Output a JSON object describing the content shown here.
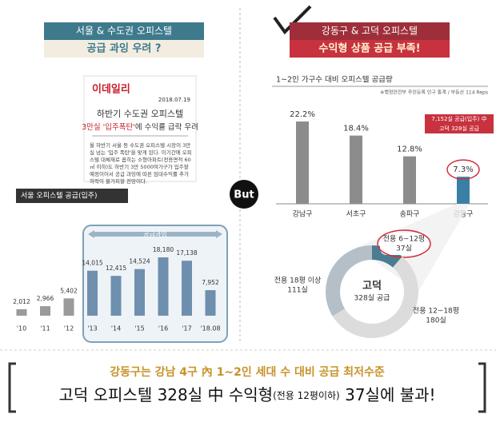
{
  "left_header": {
    "title": "서울 & 수도권 오피스텔",
    "subtitle": "공급 과잉 우려 ?"
  },
  "right_header": {
    "title": "강동구 & 고덕 오피스텔",
    "subtitle": "수익형 상품 공급 부족!"
  },
  "news": {
    "source": "이데일리",
    "date": "2018.07.19",
    "headline": "하반기 수도권 오피스텔",
    "subheadline_highlight": "3만실 '입주폭탄'",
    "subheadline_rest": "에 수익률 급락 우려",
    "body": "올 하반기 서울 등 수도권 오피스텔 시장이 3만실 넘는 '입주 폭탄'을 맞게 된다. 이기간에 오피스텔 대체재로 꼽히는 소형아파트(전용면적 60㎡ 이하)도 하반기 3만 5000여가구가 입주할 예정이어서 공급 과잉에 따른 임대수익률 추가 하락이 불가피할 전망이다."
  },
  "divider_label": "But",
  "chart_data": [
    {
      "type": "bar",
      "title": "서울 오피스텔 공급(입주)",
      "categories": [
        "'10",
        "'11",
        "'12",
        "'13",
        "'14",
        "'15",
        "'16",
        "'17",
        "'18.08"
      ],
      "values": [
        2012,
        2966,
        5402,
        14015,
        12415,
        14524,
        18180,
        17138,
        7952
      ],
      "value_labels": [
        "2,012",
        "2,966",
        "5,402",
        "14,015",
        "12,415",
        "14,524",
        "18,180",
        "17,138",
        "7,952"
      ],
      "colors": [
        "#9a9a9a",
        "#9a9a9a",
        "#9a9a9a",
        "#6f8fae",
        "#6f8fae",
        "#6f8fae",
        "#6f8fae",
        "#6f8fae",
        "#6f8fae"
      ],
      "annotation": "공급과잉"
    },
    {
      "type": "bar",
      "title": "1~2인 가구수 대비 오피스텔 공급량",
      "source": "※행정안전부 주민등록 인구 통계 / 부동산 114 Reps",
      "categories": [
        "강남구",
        "서초구",
        "송파구",
        "강동구"
      ],
      "values": [
        22.2,
        18.4,
        12.8,
        7.3
      ],
      "value_labels": [
        "22.2%",
        "18.4%",
        "12.8%",
        "7.3%"
      ],
      "colors": [
        "#8c8c8c",
        "#8c8c8c",
        "#8c8c8c",
        "#3b7fa6"
      ],
      "annotation": [
        "7,152실 공급(입주) 中",
        "고덕 328실 공급"
      ]
    },
    {
      "type": "donut",
      "center_label": [
        "고덕",
        "328실 공급"
      ],
      "categories": [
        "전용 6~12평",
        "전용 12~18평",
        "전용 18평 이상"
      ],
      "values": [
        37,
        180,
        111
      ],
      "value_labels": [
        "37실",
        "180실",
        "111실"
      ],
      "colors": [
        "#4a7d94",
        "#dcdcdc",
        "#b5bfc8"
      ]
    }
  ],
  "footer": {
    "line1": "강동구는 강남 4구 內 1~2인 세대 수 대비 공급 최저수준",
    "line2_main": "고덕 오피스텔 328실 中 수익형",
    "line2_note": "(전용 12평이하)",
    "line2_end": " 37실에 불과!"
  }
}
